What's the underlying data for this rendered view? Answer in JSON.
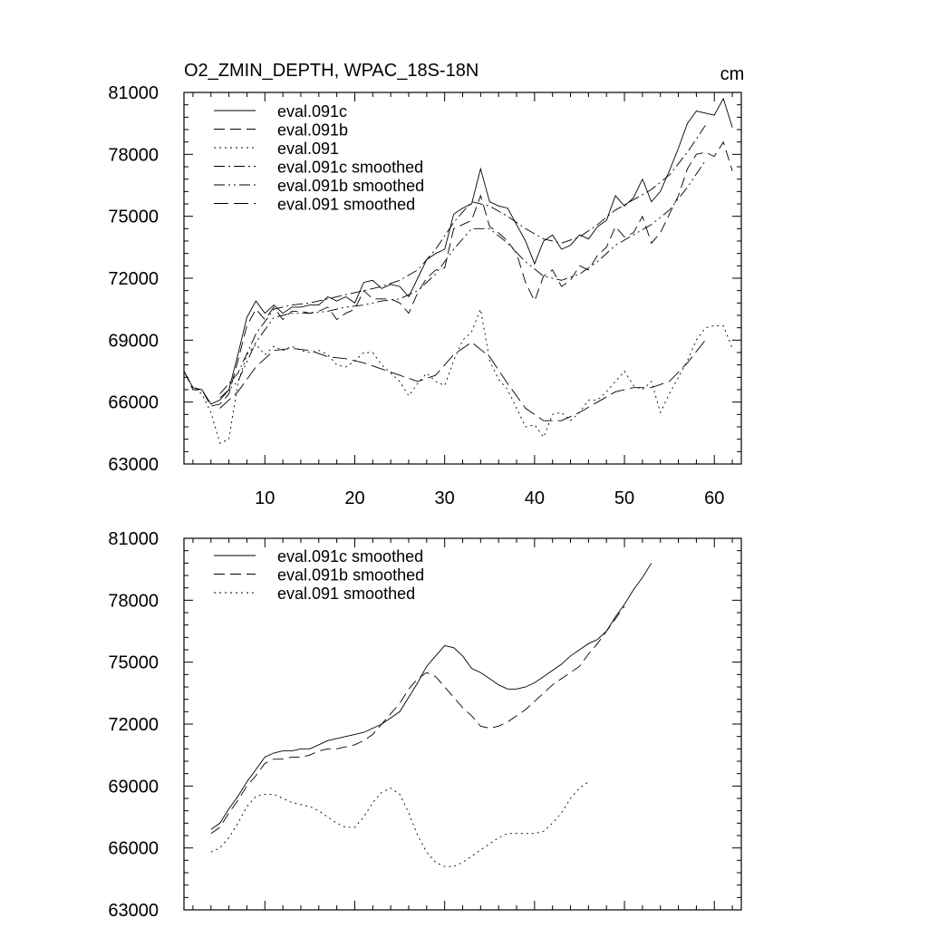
{
  "chart_data": [
    {
      "type": "line",
      "title": "O2_ZMIN_DEPTH, WPAC_18S-18N",
      "units": "cm",
      "xlim": [
        1,
        63
      ],
      "ylim": [
        63000,
        81000
      ],
      "xticks": [
        10,
        20,
        30,
        40,
        50,
        60
      ],
      "yticks": [
        63000,
        66000,
        69000,
        72000,
        75000,
        78000,
        81000
      ],
      "series": [
        {
          "name": "eval.091c",
          "dash": "solid",
          "x": [
            1,
            2,
            3,
            4,
            5,
            6,
            7,
            8,
            9,
            10,
            11,
            12,
            13,
            14,
            15,
            16,
            17,
            18,
            19,
            20,
            21,
            22,
            23,
            24,
            25,
            26,
            27,
            28,
            29,
            30,
            31,
            32,
            33,
            34,
            35,
            36,
            37,
            38,
            39,
            40,
            41,
            42,
            43,
            44,
            45,
            46,
            47,
            48,
            49,
            50,
            51,
            52,
            53,
            54,
            55,
            56,
            57,
            58,
            59,
            60,
            61,
            62,
            63
          ],
          "y": [
            67500,
            66700,
            66600,
            65900,
            66100,
            66600,
            68300,
            70100,
            70900,
            70300,
            70700,
            70300,
            70600,
            70600,
            70700,
            70700,
            71100,
            70900,
            71100,
            70800,
            71800,
            71900,
            71500,
            71700,
            71600,
            71100,
            72000,
            72900,
            73200,
            73400,
            75100,
            75400,
            75600,
            77300,
            75700,
            75500,
            75400,
            74600,
            73800,
            72700,
            73800,
            74100,
            73400,
            73600,
            74100,
            73900,
            74500,
            74800,
            76000,
            75500,
            75900,
            76800,
            75700,
            76200,
            77200,
            78300,
            79500,
            80100,
            80000,
            79900,
            80700,
            79300,
            null
          ]
        },
        {
          "name": "eval.091b",
          "dash": "dash",
          "x": [
            1,
            2,
            3,
            4,
            5,
            6,
            7,
            8,
            9,
            10,
            11,
            12,
            13,
            14,
            15,
            16,
            17,
            18,
            19,
            20,
            21,
            22,
            23,
            24,
            25,
            26,
            27,
            28,
            29,
            30,
            31,
            32,
            33,
            34,
            35,
            36,
            37,
            38,
            39,
            40,
            41,
            42,
            43,
            44,
            45,
            46,
            47,
            48,
            49,
            50,
            51,
            52,
            53,
            54,
            55,
            56,
            57,
            58,
            59,
            60,
            61,
            62,
            63
          ],
          "y": [
            67500,
            66600,
            66600,
            65800,
            65900,
            66400,
            68000,
            69700,
            70500,
            70000,
            70600,
            70000,
            70400,
            70400,
            70300,
            70400,
            70600,
            70000,
            70300,
            70500,
            71400,
            71000,
            71000,
            71000,
            70800,
            70300,
            71300,
            72000,
            72400,
            72500,
            74400,
            74600,
            74800,
            76000,
            74500,
            74200,
            73800,
            73200,
            71800,
            70900,
            72100,
            72400,
            71600,
            71900,
            72600,
            72400,
            73100,
            73500,
            74500,
            74000,
            74200,
            75000,
            73700,
            74200,
            75100,
            76000,
            77300,
            78000,
            78100,
            77900,
            78600,
            77200,
            null
          ]
        },
        {
          "name": "eval.091",
          "dash": "dot",
          "x": [
            1,
            2,
            3,
            4,
            5,
            6,
            7,
            8,
            9,
            10,
            11,
            12,
            13,
            14,
            15,
            16,
            17,
            18,
            19,
            20,
            21,
            22,
            23,
            24,
            25,
            26,
            27,
            28,
            29,
            30,
            31,
            32,
            33,
            34,
            35,
            36,
            37,
            38,
            39,
            40,
            41,
            42,
            43,
            44,
            45,
            46,
            47,
            48,
            49,
            50,
            51,
            52,
            53,
            54,
            55,
            56,
            57,
            58,
            59,
            60,
            61,
            62,
            63
          ],
          "y": [
            67500,
            66700,
            66400,
            65500,
            64000,
            64200,
            66900,
            68300,
            68800,
            68300,
            68700,
            68500,
            68700,
            68500,
            68400,
            68500,
            68300,
            67800,
            67700,
            68000,
            68400,
            68400,
            67800,
            67400,
            67000,
            66300,
            66900,
            67400,
            67000,
            66800,
            68000,
            69000,
            69400,
            70500,
            68000,
            67100,
            66600,
            65700,
            64800,
            64900,
            64300,
            65400,
            65500,
            65100,
            65500,
            66100,
            66100,
            66500,
            67000,
            67500,
            66800,
            66600,
            67000,
            65500,
            66400,
            67200,
            68000,
            69000,
            69600,
            69700,
            69700,
            68600,
            null
          ]
        },
        {
          "name": "eval.091c smoothed",
          "dash": "dashdot",
          "x": [
            5,
            7,
            9,
            11,
            13,
            15,
            17,
            19,
            21,
            23,
            25,
            27,
            29,
            31,
            33,
            35,
            37,
            39,
            41,
            43,
            45,
            47,
            49,
            51,
            53,
            55,
            57,
            59
          ],
          "y": [
            66400,
            67400,
            69300,
            70500,
            70700,
            70800,
            71000,
            71200,
            71400,
            71600,
            71900,
            72400,
            73400,
            74700,
            75700,
            75500,
            75000,
            74400,
            73900,
            73700,
            74000,
            74600,
            75300,
            75800,
            76300,
            77000,
            78100,
            79400
          ]
        },
        {
          "name": "eval.091b smoothed",
          "dash": "dashdotdot",
          "x": [
            5,
            7,
            9,
            11,
            13,
            15,
            17,
            19,
            21,
            23,
            25,
            27,
            29,
            31,
            33,
            35,
            37,
            39,
            41,
            43,
            45,
            47,
            49,
            51,
            53,
            55,
            57,
            59
          ],
          "y": [
            66200,
            67000,
            68900,
            70100,
            70300,
            70300,
            70400,
            70600,
            70700,
            70900,
            71000,
            71400,
            72200,
            73400,
            74400,
            74400,
            73700,
            72800,
            72100,
            71900,
            72200,
            72800,
            73600,
            74100,
            74600,
            75300,
            76400,
            77700
          ]
        },
        {
          "name": "eval.091 smoothed",
          "dash": "longdash",
          "x": [
            5,
            7,
            9,
            11,
            13,
            15,
            17,
            19,
            21,
            23,
            25,
            27,
            29,
            31,
            33,
            35,
            37,
            39,
            41,
            43,
            45,
            47,
            49,
            51,
            53,
            55,
            57,
            59
          ],
          "y": [
            65700,
            66500,
            67700,
            68500,
            68600,
            68500,
            68200,
            68100,
            67900,
            67600,
            67300,
            67000,
            67300,
            68300,
            68900,
            68200,
            66900,
            65700,
            65100,
            65100,
            65500,
            66000,
            66500,
            66700,
            66700,
            67000,
            67900,
            69000
          ]
        }
      ]
    },
    {
      "type": "line",
      "xlim": [
        1,
        63
      ],
      "ylim": [
        63000,
        81000
      ],
      "xticks": [
        10,
        20,
        30,
        40,
        50,
        60
      ],
      "yticks": [
        63000,
        66000,
        69000,
        72000,
        75000,
        78000,
        81000
      ],
      "series": [
        {
          "name": "eval.091c smoothed",
          "dash": "solid",
          "x": [
            4,
            5,
            6,
            7,
            8,
            9,
            10,
            11,
            12,
            13,
            14,
            15,
            16,
            17,
            18,
            19,
            20,
            21,
            22,
            23,
            24,
            25,
            26,
            27,
            28,
            29,
            30,
            31,
            32,
            33,
            34,
            35,
            36,
            37,
            38,
            39,
            40,
            41,
            42,
            43,
            44,
            45,
            46,
            47,
            48,
            49,
            50,
            51,
            52,
            53,
            54,
            55,
            56,
            57,
            58,
            59,
            60,
            61
          ],
          "y": [
            66900,
            67200,
            67900,
            68500,
            69200,
            69800,
            70400,
            70600,
            70700,
            70700,
            70800,
            70800,
            71000,
            71200,
            71300,
            71400,
            71500,
            71600,
            71800,
            72000,
            72300,
            72600,
            73300,
            74000,
            74800,
            75300,
            75800,
            75700,
            75300,
            74700,
            74500,
            74200,
            73900,
            73700,
            73700,
            73800,
            74000,
            74300,
            74600,
            74900,
            75300,
            75600,
            75900,
            76100,
            76500,
            77200,
            77800,
            78500,
            79100,
            79800,
            null,
            null,
            null,
            null,
            null,
            null,
            null,
            null
          ],
          "x_note": ""
        },
        {
          "name": "eval.091b smoothed",
          "dash": "dash",
          "x": [
            4,
            5,
            6,
            7,
            8,
            9,
            10,
            11,
            12,
            13,
            14,
            15,
            16,
            17,
            18,
            19,
            20,
            21,
            22,
            23,
            24,
            25,
            26,
            27,
            28,
            29,
            30,
            31,
            32,
            33,
            34,
            35,
            36,
            37,
            38,
            39,
            40,
            41,
            42,
            43,
            44,
            45,
            46,
            47,
            48,
            49,
            50,
            51,
            52,
            53
          ],
          "y": [
            66700,
            67000,
            67700,
            68300,
            69000,
            69500,
            70100,
            70300,
            70300,
            70400,
            70400,
            70500,
            70700,
            70800,
            70800,
            70900,
            71000,
            71200,
            71500,
            72000,
            72500,
            73000,
            73700,
            74200,
            74500,
            74300,
            73800,
            73300,
            72800,
            72400,
            71900,
            71800,
            71900,
            72100,
            72400,
            72700,
            73100,
            73500,
            73900,
            74200,
            74500,
            74800,
            75400,
            75900,
            76500,
            77100,
            77700,
            null,
            null,
            null
          ]
        },
        {
          "name": "eval.091 smoothed",
          "dash": "dot",
          "x": [
            4,
            5,
            6,
            7,
            8,
            9,
            10,
            11,
            12,
            13,
            14,
            15,
            16,
            17,
            18,
            19,
            20,
            21,
            22,
            23,
            24,
            25,
            26,
            27,
            28,
            29,
            30,
            31,
            32,
            33,
            34,
            35,
            36,
            37,
            38,
            39,
            40,
            41,
            42,
            43,
            44,
            45,
            46,
            47,
            48,
            49,
            50,
            51,
            52,
            53
          ],
          "y": [
            65800,
            66000,
            66500,
            67200,
            68000,
            68500,
            68600,
            68600,
            68400,
            68200,
            68100,
            68000,
            67800,
            67500,
            67200,
            67000,
            67000,
            67500,
            68200,
            68700,
            68900,
            68600,
            67700,
            66600,
            65800,
            65300,
            65100,
            65100,
            65300,
            65600,
            65900,
            66200,
            66500,
            66700,
            66700,
            66700,
            66700,
            66800,
            67200,
            67700,
            68400,
            68900,
            69200,
            null,
            null,
            null,
            null,
            null,
            null,
            null
          ]
        }
      ]
    }
  ]
}
